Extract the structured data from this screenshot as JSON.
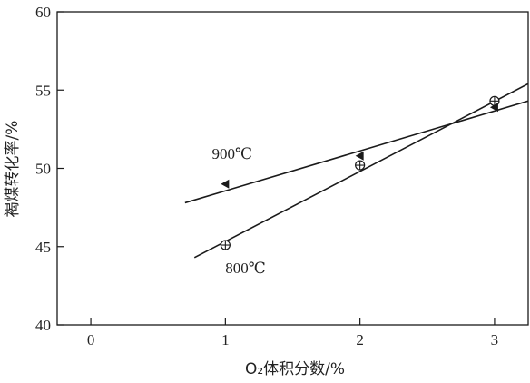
{
  "chart_data": {
    "type": "scatter",
    "xlabel": "O₂体积分数/%",
    "ylabel": "褐煤转化率/%",
    "xlim": [
      -0.25,
      3.25
    ],
    "ylim": [
      40,
      60
    ],
    "xticks": [
      0,
      1,
      2,
      3
    ],
    "yticks": [
      40,
      45,
      50,
      55,
      60
    ],
    "grid": false,
    "series": [
      {
        "name": "800℃",
        "marker": "circle-plus",
        "points": [
          {
            "x": 1,
            "y": 45.1
          },
          {
            "x": 2,
            "y": 50.2
          },
          {
            "x": 3,
            "y": 54.3
          }
        ],
        "fit_line": {
          "x": [
            0.77,
            3.25
          ],
          "y": [
            44.3,
            55.4
          ]
        }
      },
      {
        "name": "900℃",
        "marker": "left-triangle",
        "points": [
          {
            "x": 1,
            "y": 49.0
          },
          {
            "x": 2,
            "y": 50.8
          },
          {
            "x": 3,
            "y": 53.9
          }
        ],
        "fit_line": {
          "x": [
            0.7,
            3.25
          ],
          "y": [
            47.8,
            54.3
          ]
        }
      }
    ]
  }
}
